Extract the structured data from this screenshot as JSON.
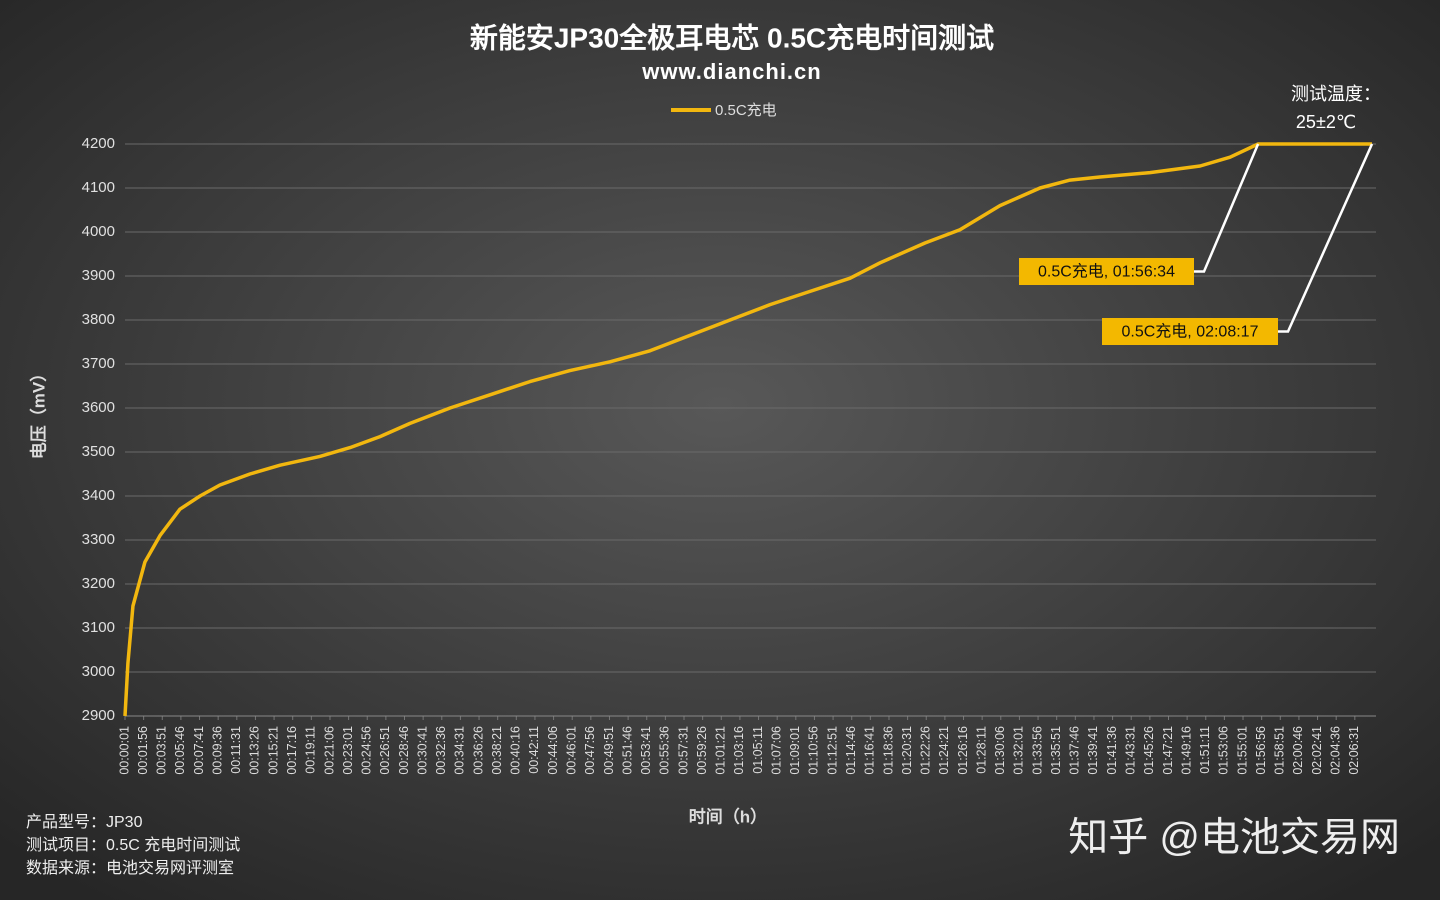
{
  "chart_data": {
    "type": "line",
    "title": "新能安JP30全极耳电芯 0.5C充电时间测试",
    "subtitle": "www.dianchi.cn",
    "x_label": "时间（h）",
    "y_label": "电压（mV）",
    "legend": "top",
    "grid": true,
    "series": [
      {
        "name": "0.5C充电",
        "color": "#f2b70f",
        "x": [
          1,
          19,
          50,
          124,
          217,
          340,
          464,
          587,
          772,
          958,
          1204,
          1390,
          1575,
          1760,
          2007,
          2254,
          2500,
          2747,
          2994,
          3241,
          3488,
          3735,
          3982,
          4229,
          4476,
          4661,
          4938,
          5154,
          5401,
          5648,
          5833,
          6018,
          6327,
          6636,
          6821,
          6994,
          7697
        ],
        "values": [
          2900,
          3020,
          3150,
          3250,
          3310,
          3370,
          3400,
          3425,
          3450,
          3470,
          3490,
          3510,
          3535,
          3565,
          3600,
          3630,
          3660,
          3685,
          3705,
          3730,
          3765,
          3800,
          3835,
          3865,
          3895,
          3930,
          3975,
          4005,
          4060,
          4100,
          4118,
          4125,
          4135,
          4150,
          4170,
          4200,
          4200
        ]
      }
    ],
    "xlim": [
      1,
      7697
    ],
    "ylim": [
      2900,
      4200
    ],
    "yticks": [
      2900,
      3000,
      3100,
      3200,
      3300,
      3400,
      3500,
      3600,
      3700,
      3800,
      3900,
      4000,
      4100,
      4200
    ],
    "xticks": [
      {
        "value": 1,
        "label": "00:00:01"
      },
      {
        "value": 116,
        "label": "00:01:56"
      },
      {
        "value": 231,
        "label": "00:03:51"
      },
      {
        "value": 346,
        "label": "00:05:46"
      },
      {
        "value": 461,
        "label": "00:07:41"
      },
      {
        "value": 576,
        "label": "00:09:36"
      },
      {
        "value": 691,
        "label": "00:11:31"
      },
      {
        "value": 806,
        "label": "00:13:26"
      },
      {
        "value": 921,
        "label": "00:15:21"
      },
      {
        "value": 1036,
        "label": "00:17:16"
      },
      {
        "value": 1151,
        "label": "00:19:11"
      },
      {
        "value": 1266,
        "label": "00:21:06"
      },
      {
        "value": 1381,
        "label": "00:23:01"
      },
      {
        "value": 1496,
        "label": "00:24:56"
      },
      {
        "value": 1611,
        "label": "00:26:51"
      },
      {
        "value": 1726,
        "label": "00:28:46"
      },
      {
        "value": 1841,
        "label": "00:30:41"
      },
      {
        "value": 1956,
        "label": "00:32:36"
      },
      {
        "value": 2071,
        "label": "00:34:31"
      },
      {
        "value": 2186,
        "label": "00:36:26"
      },
      {
        "value": 2301,
        "label": "00:38:21"
      },
      {
        "value": 2416,
        "label": "00:40:16"
      },
      {
        "value": 2531,
        "label": "00:42:11"
      },
      {
        "value": 2646,
        "label": "00:44:06"
      },
      {
        "value": 2761,
        "label": "00:46:01"
      },
      {
        "value": 2876,
        "label": "00:47:56"
      },
      {
        "value": 2991,
        "label": "00:49:51"
      },
      {
        "value": 3106,
        "label": "00:51:46"
      },
      {
        "value": 3221,
        "label": "00:53:41"
      },
      {
        "value": 3336,
        "label": "00:55:36"
      },
      {
        "value": 3451,
        "label": "00:57:31"
      },
      {
        "value": 3566,
        "label": "00:59:26"
      },
      {
        "value": 3681,
        "label": "01:01:21"
      },
      {
        "value": 3796,
        "label": "01:03:16"
      },
      {
        "value": 3911,
        "label": "01:05:11"
      },
      {
        "value": 4026,
        "label": "01:07:06"
      },
      {
        "value": 4141,
        "label": "01:09:01"
      },
      {
        "value": 4256,
        "label": "01:10:56"
      },
      {
        "value": 4371,
        "label": "01:12:51"
      },
      {
        "value": 4486,
        "label": "01:14:46"
      },
      {
        "value": 4601,
        "label": "01:16:41"
      },
      {
        "value": 4716,
        "label": "01:18:36"
      },
      {
        "value": 4831,
        "label": "01:20:31"
      },
      {
        "value": 4946,
        "label": "01:22:26"
      },
      {
        "value": 5061,
        "label": "01:24:21"
      },
      {
        "value": 5176,
        "label": "01:26:16"
      },
      {
        "value": 5291,
        "label": "01:28:11"
      },
      {
        "value": 5406,
        "label": "01:30:06"
      },
      {
        "value": 5521,
        "label": "01:32:01"
      },
      {
        "value": 5636,
        "label": "01:33:56"
      },
      {
        "value": 5751,
        "label": "01:35:51"
      },
      {
        "value": 5866,
        "label": "01:37:46"
      },
      {
        "value": 5981,
        "label": "01:39:41"
      },
      {
        "value": 6096,
        "label": "01:41:36"
      },
      {
        "value": 6211,
        "label": "01:43:31"
      },
      {
        "value": 6326,
        "label": "01:45:26"
      },
      {
        "value": 6441,
        "label": "01:47:21"
      },
      {
        "value": 6556,
        "label": "01:49:16"
      },
      {
        "value": 6671,
        "label": "01:51:11"
      },
      {
        "value": 6786,
        "label": "01:53:06"
      },
      {
        "value": 6901,
        "label": "01:55:01"
      },
      {
        "value": 7016,
        "label": "01:56:56"
      },
      {
        "value": 7131,
        "label": "01:58:51"
      },
      {
        "value": 7246,
        "label": "02:00:46"
      },
      {
        "value": 7361,
        "label": "02:02:41"
      },
      {
        "value": 7476,
        "label": "02:04:36"
      },
      {
        "value": 7591,
        "label": "02:06:31"
      }
    ],
    "annotations": [
      {
        "text": "0.5C充电, 01:56:34",
        "x": 6994,
        "y": 4200
      },
      {
        "text": "0.5C充电, 02:08:17",
        "x": 7697,
        "y": 4200
      }
    ],
    "temperature_note": [
      "测试温度：",
      "25±2℃"
    ],
    "notes": [
      "产品型号：JP30",
      "测试项目：0.5C 充电时间测试",
      "数据来源：电池交易网评测室"
    ],
    "watermark": "知乎 @电池交易网"
  }
}
